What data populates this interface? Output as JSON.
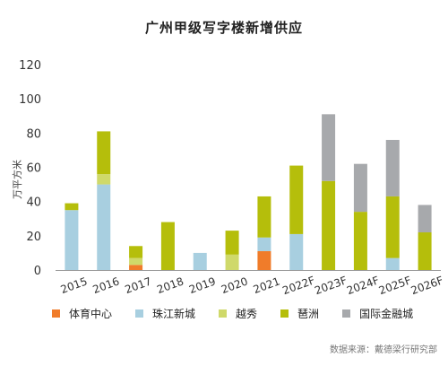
{
  "chart_data": {
    "type": "bar",
    "stacked": true,
    "title": "广州甲级写字楼新增供应",
    "ylabel": "万平方米",
    "xlabel": "",
    "ylim": [
      0,
      120
    ],
    "yticks": [
      0,
      20,
      40,
      60,
      80,
      100,
      120
    ],
    "categories": [
      "2015",
      "2016",
      "2017",
      "2018",
      "2019",
      "2020",
      "2021",
      "2022F",
      "2023F",
      "2024F",
      "2025F",
      "2026F"
    ],
    "series": [
      {
        "name": "体育中心",
        "color": "#f07c2a",
        "values": [
          0,
          0,
          3,
          0,
          0,
          0,
          11,
          0,
          0,
          0,
          0,
          0
        ]
      },
      {
        "name": "珠江新城",
        "color": "#a8cfe0",
        "values": [
          35,
          50,
          0,
          0,
          10,
          0,
          8,
          21,
          0,
          0,
          7,
          0
        ]
      },
      {
        "name": "越秀",
        "color": "#cfd96a",
        "values": [
          0,
          6,
          4,
          0,
          0,
          9,
          0,
          0,
          0,
          0,
          0,
          0
        ]
      },
      {
        "name": "琶洲",
        "color": "#b5be0b",
        "values": [
          4,
          25,
          7,
          28,
          0,
          14,
          24,
          40,
          52,
          34,
          36,
          22
        ]
      },
      {
        "name": "国际金融城",
        "color": "#a7a9ac",
        "values": [
          0,
          0,
          0,
          0,
          0,
          0,
          0,
          0,
          39,
          28,
          33,
          16
        ]
      }
    ],
    "grid": false,
    "legend": "bottom"
  },
  "source_text": "数据来源：戴德梁行研究部"
}
